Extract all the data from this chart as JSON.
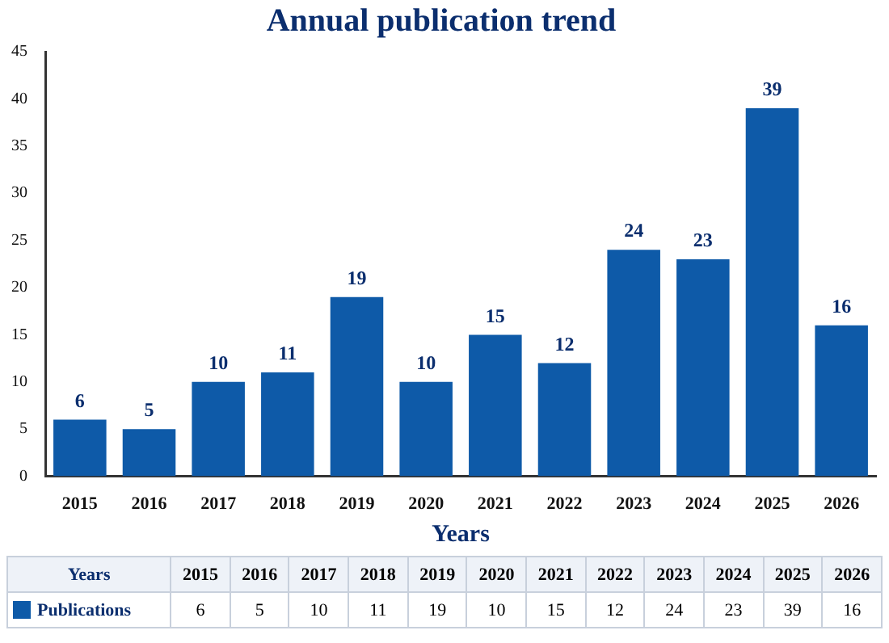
{
  "chart_data": {
    "type": "bar",
    "title": "Annual publication trend",
    "xlabel": "Years",
    "categories": [
      "2015",
      "2016",
      "2017",
      "2018",
      "2019",
      "2020",
      "2021",
      "2022",
      "2023",
      "2024",
      "2025",
      "2026"
    ],
    "series": [
      {
        "name": "Publications",
        "color": "#0e5aa8",
        "values": [
          6,
          5,
          10,
          11,
          19,
          10,
          15,
          12,
          24,
          23,
          39,
          16
        ]
      }
    ],
    "ylim": [
      0,
      45
    ],
    "yticks": [
      0,
      5,
      10,
      15,
      20,
      25,
      30,
      35,
      40,
      45
    ],
    "grid": false,
    "legend": "bottom",
    "data_labels": true,
    "annotations": [
      "6",
      "5",
      "10",
      "11",
      "19",
      "10",
      "15",
      "12",
      "24",
      "23",
      "39",
      "16"
    ]
  }
}
